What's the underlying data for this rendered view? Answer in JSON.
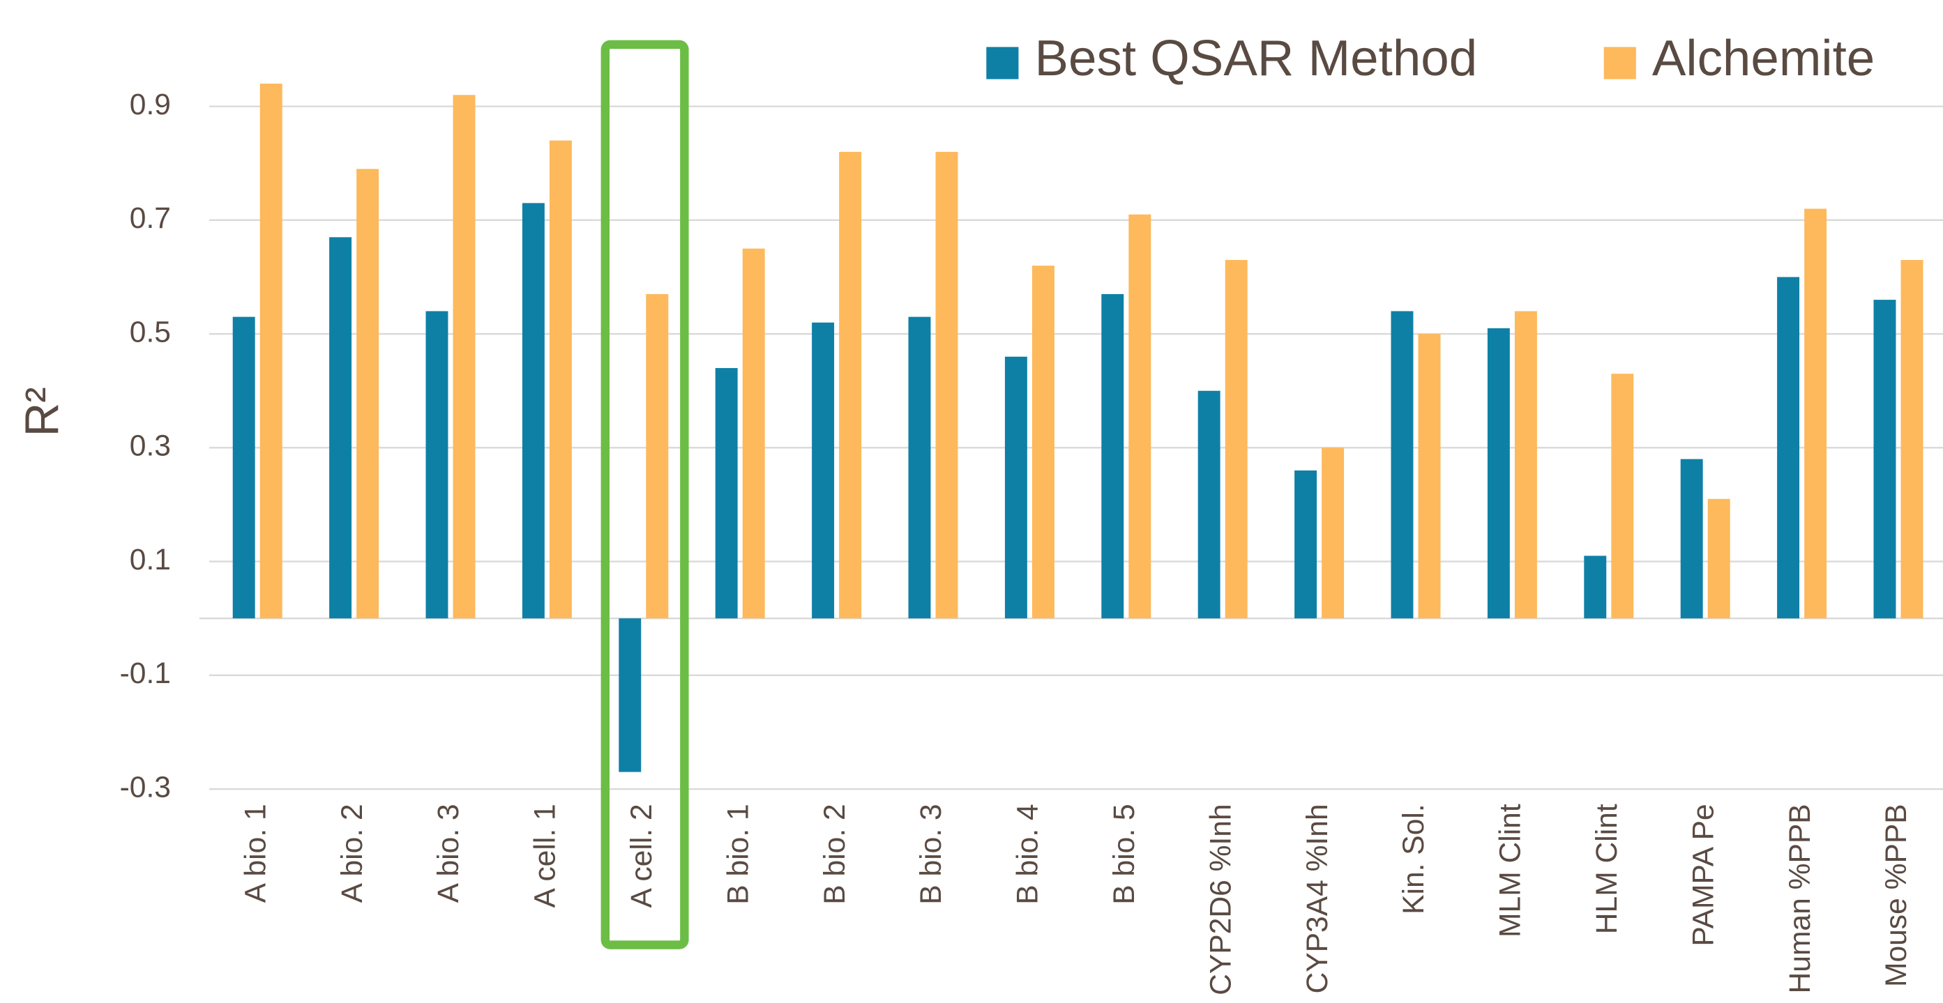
{
  "chart_data": {
    "type": "bar",
    "y_label": "R²",
    "categories": [
      "A bio. 1",
      "A bio. 2",
      "A bio. 3",
      "A cell. 1",
      "A cell. 2",
      "B bio. 1",
      "B bio. 2",
      "B bio. 3",
      "B bio. 4",
      "B bio. 5",
      "CYP2D6 %Inh",
      "CYP3A4 %Inh",
      "Kin. Sol.",
      "MLM Clint",
      "HLM Clint",
      "PAMPA Pe",
      "Human %PPB",
      "Mouse %PPB"
    ],
    "series": [
      {
        "name": "Best QSAR Method",
        "color": "#0e80a6",
        "values": [
          0.53,
          0.67,
          0.54,
          0.73,
          -0.27,
          0.44,
          0.52,
          0.53,
          0.46,
          0.57,
          0.4,
          0.26,
          0.54,
          0.51,
          0.11,
          0.28,
          0.6,
          0.56
        ]
      },
      {
        "name": "Alchemite",
        "color": "#fdb95b",
        "values": [
          0.94,
          0.79,
          0.92,
          0.84,
          0.57,
          0.65,
          0.82,
          0.82,
          0.62,
          0.71,
          0.63,
          0.3,
          0.5,
          0.54,
          0.43,
          0.21,
          0.72,
          0.63
        ]
      }
    ],
    "ylim": [
      -0.3,
      1.0
    ],
    "yticks": [
      -0.3,
      -0.1,
      0.1,
      0.3,
      0.5,
      0.7,
      0.9
    ],
    "grid": true,
    "legend": "top-right"
  }
}
